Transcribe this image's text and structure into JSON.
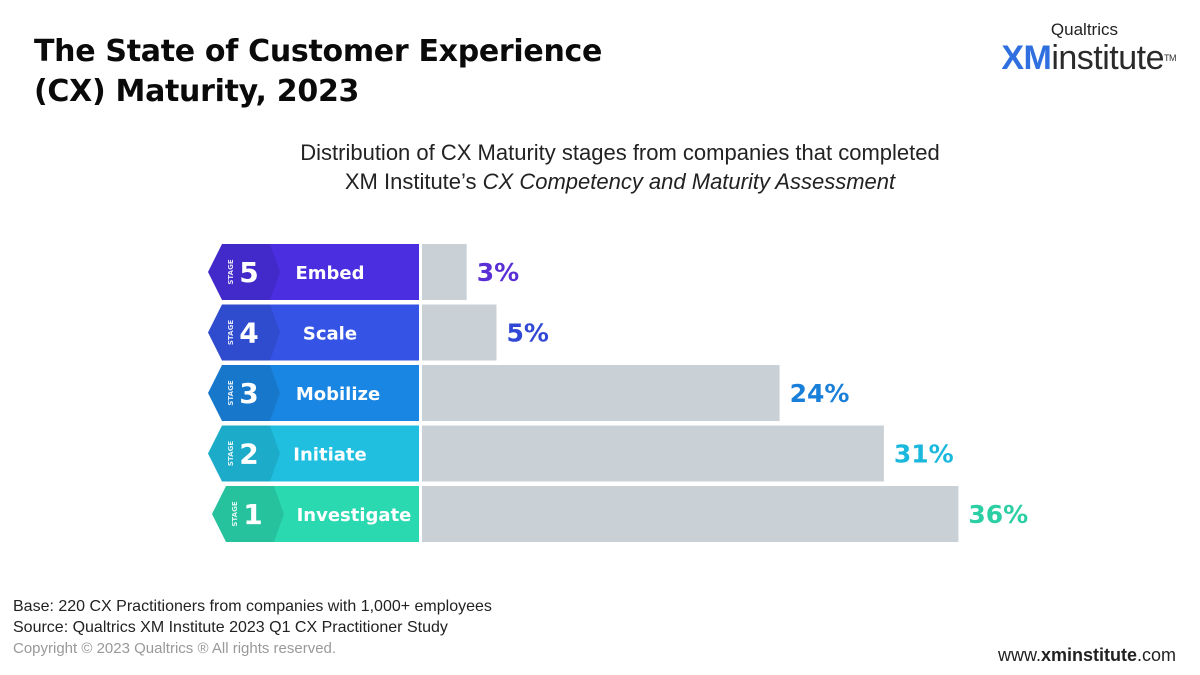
{
  "header": {
    "title_line1": "The State of Customer Experience",
    "title_line2": "(CX) Maturity, 2023"
  },
  "logo": {
    "brand": "Qualtrics",
    "xm": "XM",
    "institute": "institute",
    "trademark": "TM"
  },
  "subtitle": {
    "line1": "Distribution of CX Maturity stages from companies that completed",
    "line2_plain": "XM Institute’s ",
    "line2_italic": "CX Competency and Maturity Assessment"
  },
  "chart_data": {
    "type": "bar",
    "orientation": "horizontal",
    "stage_label": "STAGE",
    "stages": [
      {
        "number": "5",
        "name": "Embed",
        "value": 3,
        "label": "3%",
        "color": "#4a2ee0",
        "text_color": "#5b2fd6"
      },
      {
        "number": "4",
        "name": "Scale",
        "value": 5,
        "label": "5%",
        "color": "#3554e6",
        "text_color": "#3148d4"
      },
      {
        "number": "3",
        "name": "Mobilize",
        "value": 24,
        "label": "24%",
        "color": "#1a86e3",
        "text_color": "#1a7fd8"
      },
      {
        "number": "2",
        "name": "Initiate",
        "value": 31,
        "label": "31%",
        "color": "#20bfe0",
        "text_color": "#19b8dc"
      },
      {
        "number": "1",
        "name": "Investigate",
        "value": 36,
        "label": "36%",
        "color": "#2bd9b0",
        "text_color": "#2ccfa3"
      }
    ],
    "bar_color": "#c9d1d6"
  },
  "footer": {
    "base": "Base: 220 CX Practitioners from companies with 1,000+ employees",
    "source": "Source: Qualtrics XM Institute 2023 Q1 CX Practitioner Study",
    "copyright": "Copyright © 2023 Qualtrics ® All rights reserved."
  },
  "website": {
    "prefix": "www.",
    "bold": "xminstitute",
    "suffix": ".com"
  }
}
